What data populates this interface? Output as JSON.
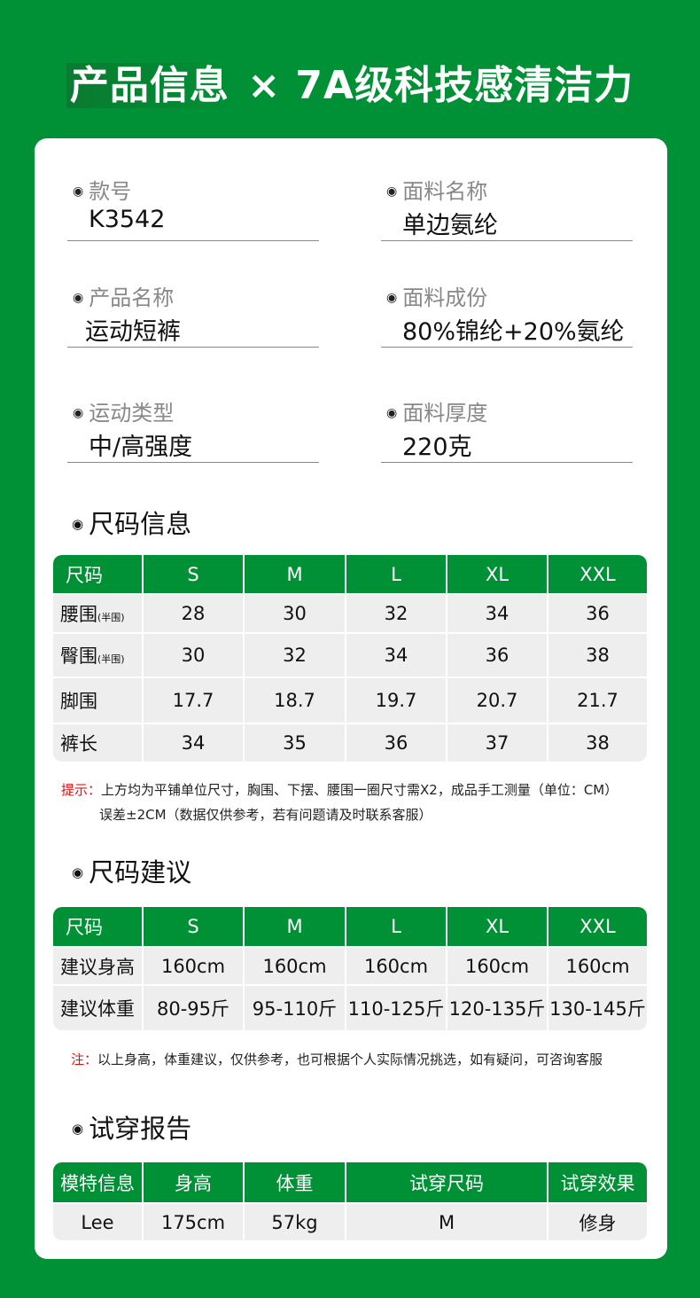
{
  "title": {
    "highlight": "产品信息",
    "rest": " × 7A级科技感清洁力"
  },
  "fields": [
    {
      "label": "款号",
      "value": "K3542"
    },
    {
      "label": "面料名称",
      "value": "单边氨纶"
    },
    {
      "label": "产品名称",
      "value": "运动短裤"
    },
    {
      "label": "面料成份",
      "value": "80%锦纶+20%氨纶"
    },
    {
      "label": "运动类型",
      "value": "中/高强度"
    },
    {
      "label": "面料厚度",
      "value": "220克"
    }
  ],
  "size_info": {
    "title": "尺码信息",
    "headers": [
      "尺码",
      "S",
      "M",
      "L",
      "XL",
      "XXL"
    ],
    "rows": [
      {
        "label": "腰围",
        "sub": "(半围)",
        "values": [
          "28",
          "30",
          "32",
          "34",
          "36"
        ]
      },
      {
        "label": "臀围",
        "sub": "(半围)",
        "values": [
          "30",
          "32",
          "34",
          "36",
          "38"
        ]
      },
      {
        "label": "脚围",
        "sub": "",
        "values": [
          "17.7",
          "18.7",
          "19.7",
          "20.7",
          "21.7"
        ]
      },
      {
        "label": "裤长",
        "sub": "",
        "values": [
          "34",
          "35",
          "36",
          "37",
          "38"
        ]
      }
    ],
    "note_prefix": "提示：",
    "note_line1": "上方均为平铺单位尺寸，胸围、下摆、腰围一圈尺寸需X2，成品手工测量（单位：CM）",
    "note_line2": "误差±2CM（数据仅供参考，若有问题请及时联系客服）"
  },
  "size_advice": {
    "title": "尺码建议",
    "headers": [
      "尺码",
      "S",
      "M",
      "L",
      "XL",
      "XXL"
    ],
    "rows": [
      {
        "label": "建议身高",
        "sub": "",
        "values": [
          "160cm",
          "160cm",
          "160cm",
          "160cm",
          "160cm"
        ]
      },
      {
        "label": "建议体重",
        "sub": "",
        "values": [
          "80-95斤",
          "95-110斤",
          "110-125斤",
          "120-135斤",
          "130-145斤"
        ]
      }
    ],
    "note_prefix": "注：",
    "note_line1": "以上身高，体重建议，仅供参考，也可根据个人实际情况挑选，如有疑问，可咨询客服"
  },
  "fitting": {
    "title": "试穿报告",
    "headers": [
      "模特信息",
      "身高",
      "体重",
      "试穿尺码",
      "试穿效果"
    ],
    "rows": [
      {
        "label": "Lee",
        "sub": "",
        "values": [
          "175cm",
          "57kg",
          "M",
          "修身"
        ]
      }
    ]
  },
  "colors": {
    "brand_green": "#009035",
    "note_red": "#e01010"
  }
}
